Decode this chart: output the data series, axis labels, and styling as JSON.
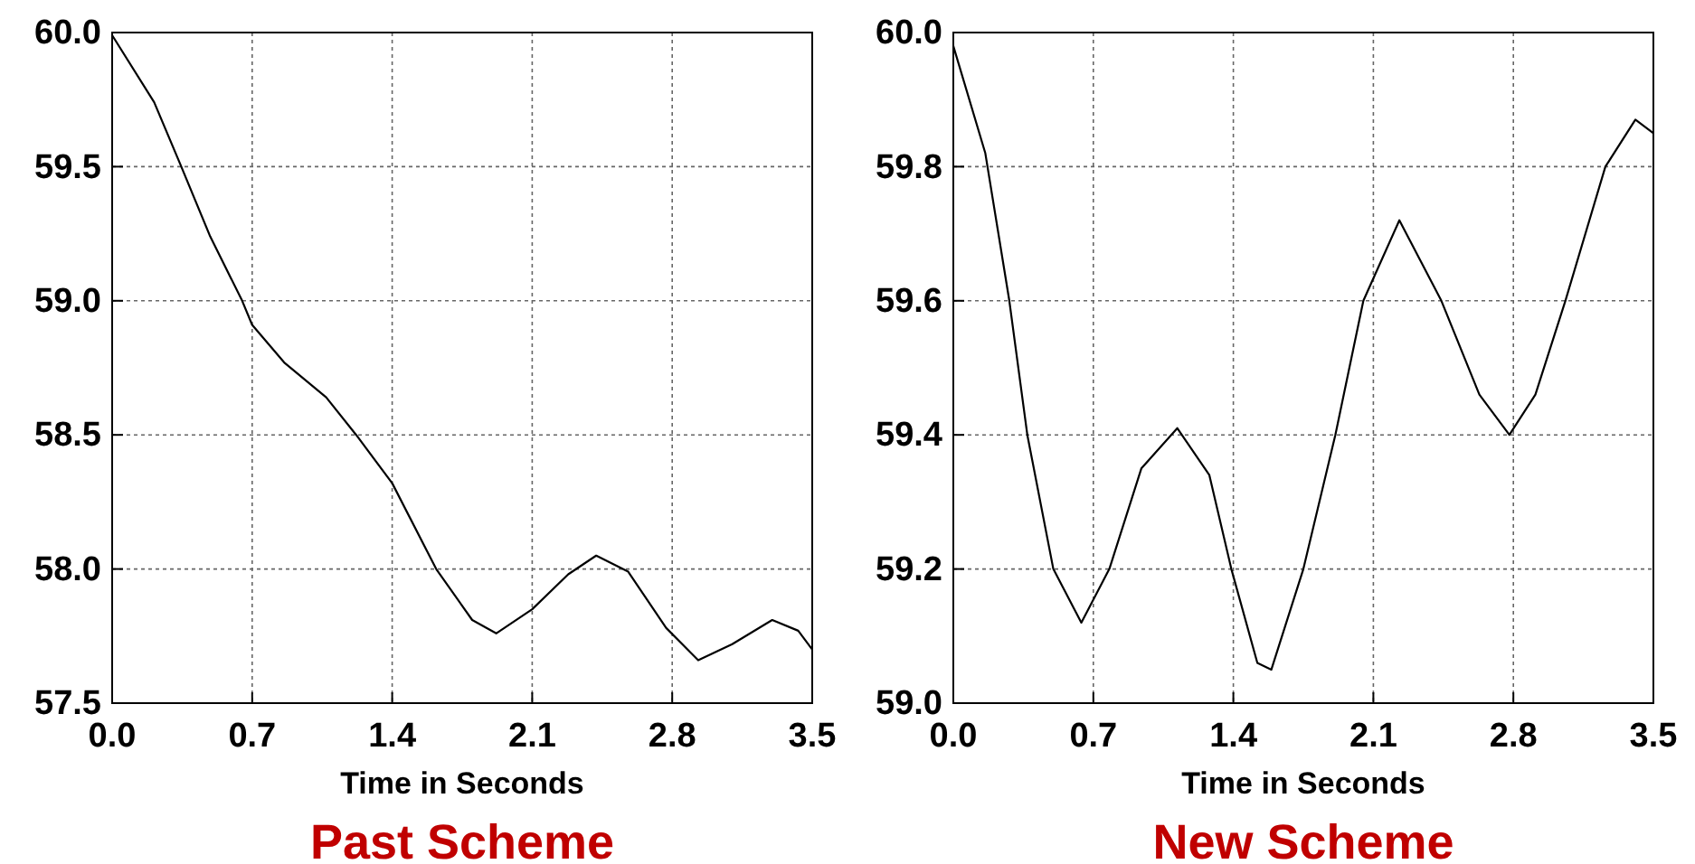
{
  "chart_data": [
    {
      "type": "line",
      "title": "Past Scheme",
      "xlabel": "Time in Seconds",
      "xlim": [
        0,
        3.5
      ],
      "xticks": [
        {
          "value": 0,
          "label": "0.0"
        },
        0.7,
        1.4,
        2.1,
        2.8,
        3.5
      ],
      "ylim": [
        57.5,
        60.0
      ],
      "yticks": [
        57.5,
        {
          "value": 58,
          "label": "58.0"
        },
        58.5,
        {
          "value": 59,
          "label": "59.0"
        },
        59.5,
        {
          "value": 60,
          "label": "60.0"
        }
      ],
      "grid": true,
      "line_style": "solid",
      "series": [
        {
          "color": "#000000",
          "x": [
            0,
            0.21,
            0.34,
            0.49,
            0.65,
            0.7,
            0.86,
            1.07,
            1.22,
            1.4,
            1.62,
            1.8,
            1.92,
            2.1,
            2.28,
            2.42,
            2.58,
            2.77,
            2.93,
            3.1,
            3.3,
            3.43,
            3.5
          ],
          "values": [
            59.99,
            59.74,
            59.51,
            59.24,
            59.0,
            58.91,
            58.77,
            58.64,
            58.5,
            58.32,
            58.0,
            57.81,
            57.76,
            57.85,
            57.98,
            58.05,
            57.99,
            57.78,
            57.66,
            57.72,
            57.81,
            57.77,
            57.7
          ]
        }
      ]
    },
    {
      "type": "line",
      "title": "New Scheme",
      "xlabel": "Time in Seconds",
      "xlim": [
        0,
        3.5
      ],
      "xticks": [
        {
          "value": 0,
          "label": "0.0"
        },
        0.7,
        1.4,
        2.1,
        2.8,
        3.5
      ],
      "ylim": [
        59.0,
        60.0
      ],
      "yticks": [
        {
          "value": 59,
          "label": "59.0"
        },
        59.2,
        59.4,
        59.6,
        59.8,
        {
          "value": 60,
          "label": "60.0"
        }
      ],
      "grid": true,
      "line_style": "solid",
      "series": [
        {
          "color": "#000000",
          "x": [
            0,
            0.16,
            0.28,
            0.37,
            0.5,
            0.64,
            0.78,
            0.94,
            1.12,
            1.28,
            1.39,
            1.52,
            1.59,
            1.75,
            1.91,
            2.05,
            2.23,
            2.44,
            2.63,
            2.78,
            2.91,
            3.06,
            3.26,
            3.41,
            3.5
          ],
          "values": [
            59.98,
            59.82,
            59.6,
            59.4,
            59.2,
            59.12,
            59.2,
            59.35,
            59.41,
            59.34,
            59.2,
            59.06,
            59.05,
            59.2,
            59.4,
            59.6,
            59.72,
            59.6,
            59.46,
            59.4,
            59.46,
            59.6,
            59.8,
            59.87,
            59.85
          ]
        }
      ]
    }
  ]
}
